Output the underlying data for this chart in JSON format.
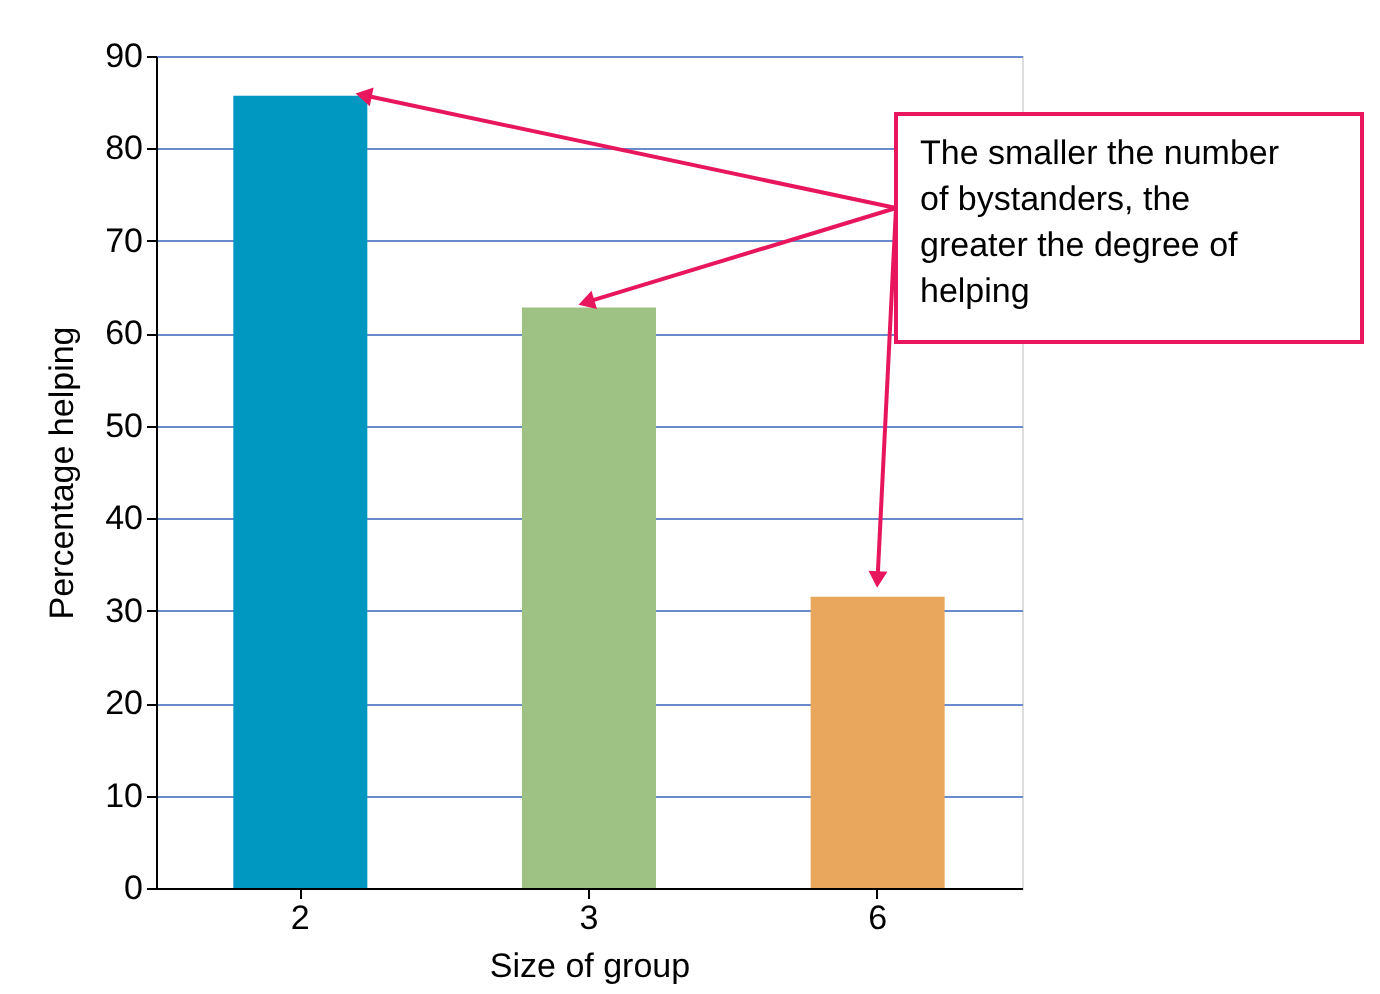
{
  "chart_data": {
    "type": "bar",
    "categories": [
      "2",
      "3",
      "6"
    ],
    "values": [
      85.7,
      62.8,
      31.5
    ],
    "colors": [
      "#0098c1",
      "#9ec283",
      "#e8a75d"
    ],
    "xlabel": "Size of group",
    "ylabel": "Percentage helping",
    "ylim": [
      0,
      90
    ],
    "yticks": [
      0,
      10,
      20,
      30,
      40,
      50,
      60,
      70,
      80,
      90
    ],
    "grid": "y",
    "annotations": [
      {
        "text": "The smaller the number of bystanders, the greater the degree of helping",
        "x": "3",
        "y": 62.8
      }
    ]
  }
}
